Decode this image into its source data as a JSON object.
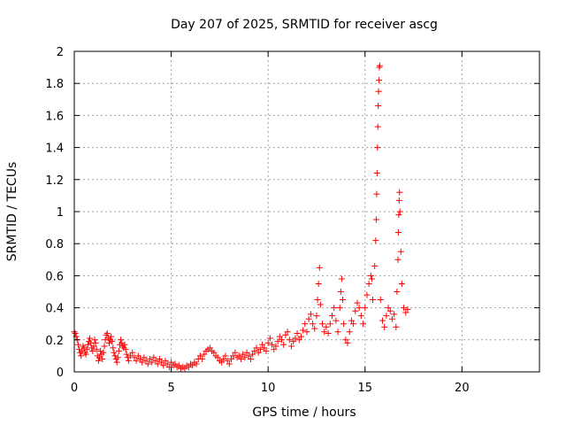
{
  "chart_data": {
    "type": "scatter",
    "title": "Day 207 of 2025, SRMTID for receiver ascg",
    "xlabel": "GPS time / hours",
    "ylabel": "SRMTID / TECUs",
    "xlim": [
      0,
      24
    ],
    "ylim": [
      0,
      2
    ],
    "xticks": [
      0,
      5,
      10,
      15,
      20
    ],
    "yticks": [
      0,
      0.2,
      0.4,
      0.6,
      0.8,
      1,
      1.2,
      1.4,
      1.6,
      1.8,
      2
    ],
    "xtick_labels": [
      "0",
      "5",
      "10",
      "15",
      "20"
    ],
    "ytick_labels": [
      "0",
      "0.2",
      "0.4",
      "0.6",
      "0.8",
      "1",
      "1.2",
      "1.4",
      "1.6",
      "1.8",
      "2"
    ],
    "grid": true,
    "marker": "+",
    "color": "#ff0000",
    "series": [
      {
        "name": "SRMTID",
        "points": [
          [
            0.0,
            0.25
          ],
          [
            0.05,
            0.24
          ],
          [
            0.1,
            0.22
          ],
          [
            0.15,
            0.2
          ],
          [
            0.2,
            0.17
          ],
          [
            0.25,
            0.14
          ],
          [
            0.3,
            0.12
          ],
          [
            0.35,
            0.1
          ],
          [
            0.4,
            0.13
          ],
          [
            0.45,
            0.16
          ],
          [
            0.5,
            0.15
          ],
          [
            0.55,
            0.12
          ],
          [
            0.6,
            0.11
          ],
          [
            0.65,
            0.14
          ],
          [
            0.7,
            0.17
          ],
          [
            0.75,
            0.19
          ],
          [
            0.8,
            0.21
          ],
          [
            0.85,
            0.18
          ],
          [
            0.9,
            0.15
          ],
          [
            0.95,
            0.13
          ],
          [
            1.0,
            0.16
          ],
          [
            1.05,
            0.2
          ],
          [
            1.1,
            0.18
          ],
          [
            1.15,
            0.14
          ],
          [
            1.2,
            0.1
          ],
          [
            1.25,
            0.07
          ],
          [
            1.3,
            0.09
          ],
          [
            1.35,
            0.13
          ],
          [
            1.4,
            0.11
          ],
          [
            1.45,
            0.08
          ],
          [
            1.5,
            0.12
          ],
          [
            1.55,
            0.16
          ],
          [
            1.6,
            0.2
          ],
          [
            1.65,
            0.23
          ],
          [
            1.7,
            0.24
          ],
          [
            1.75,
            0.21
          ],
          [
            1.8,
            0.18
          ],
          [
            1.85,
            0.2
          ],
          [
            1.9,
            0.22
          ],
          [
            1.95,
            0.19
          ],
          [
            2.0,
            0.15
          ],
          [
            2.05,
            0.12
          ],
          [
            2.1,
            0.1
          ],
          [
            2.15,
            0.08
          ],
          [
            2.2,
            0.06
          ],
          [
            2.25,
            0.09
          ],
          [
            2.3,
            0.13
          ],
          [
            2.35,
            0.17
          ],
          [
            2.4,
            0.2
          ],
          [
            2.45,
            0.18
          ],
          [
            2.5,
            0.16
          ],
          [
            2.55,
            0.15
          ],
          [
            2.6,
            0.17
          ],
          [
            2.65,
            0.14
          ],
          [
            2.7,
            0.11
          ],
          [
            2.75,
            0.09
          ],
          [
            2.8,
            0.07
          ],
          [
            2.9,
            0.1
          ],
          [
            3.0,
            0.12
          ],
          [
            3.1,
            0.09
          ],
          [
            3.2,
            0.07
          ],
          [
            3.3,
            0.1
          ],
          [
            3.4,
            0.08
          ],
          [
            3.5,
            0.06
          ],
          [
            3.6,
            0.09
          ],
          [
            3.7,
            0.07
          ],
          [
            3.8,
            0.05
          ],
          [
            3.9,
            0.08
          ],
          [
            4.0,
            0.06
          ],
          [
            4.1,
            0.09
          ],
          [
            4.2,
            0.07
          ],
          [
            4.3,
            0.05
          ],
          [
            4.4,
            0.08
          ],
          [
            4.5,
            0.06
          ],
          [
            4.6,
            0.04
          ],
          [
            4.7,
            0.07
          ],
          [
            4.8,
            0.05
          ],
          [
            4.9,
            0.03
          ],
          [
            5.0,
            0.06
          ],
          [
            5.1,
            0.04
          ],
          [
            5.2,
            0.05
          ],
          [
            5.3,
            0.03
          ],
          [
            5.4,
            0.04
          ],
          [
            5.5,
            0.02
          ],
          [
            5.6,
            0.03
          ],
          [
            5.7,
            0.02
          ],
          [
            5.8,
            0.04
          ],
          [
            5.9,
            0.03
          ],
          [
            6.0,
            0.05
          ],
          [
            6.1,
            0.04
          ],
          [
            6.2,
            0.06
          ],
          [
            6.3,
            0.05
          ],
          [
            6.4,
            0.08
          ],
          [
            6.5,
            0.1
          ],
          [
            6.6,
            0.08
          ],
          [
            6.7,
            0.11
          ],
          [
            6.8,
            0.13
          ],
          [
            6.9,
            0.14
          ],
          [
            7.0,
            0.15
          ],
          [
            7.1,
            0.13
          ],
          [
            7.2,
            0.12
          ],
          [
            7.3,
            0.1
          ],
          [
            7.4,
            0.09
          ],
          [
            7.5,
            0.07
          ],
          [
            7.6,
            0.06
          ],
          [
            7.7,
            0.08
          ],
          [
            7.8,
            0.1
          ],
          [
            7.9,
            0.07
          ],
          [
            8.0,
            0.05
          ],
          [
            8.1,
            0.08
          ],
          [
            8.2,
            0.1
          ],
          [
            8.3,
            0.12
          ],
          [
            8.4,
            0.09
          ],
          [
            8.5,
            0.1
          ],
          [
            8.6,
            0.08
          ],
          [
            8.7,
            0.11
          ],
          [
            8.8,
            0.09
          ],
          [
            8.9,
            0.12
          ],
          [
            9.0,
            0.1
          ],
          [
            9.1,
            0.08
          ],
          [
            9.2,
            0.11
          ],
          [
            9.3,
            0.13
          ],
          [
            9.4,
            0.15
          ],
          [
            9.5,
            0.12
          ],
          [
            9.6,
            0.14
          ],
          [
            9.7,
            0.17
          ],
          [
            9.8,
            0.15
          ],
          [
            9.9,
            0.13
          ],
          [
            10.0,
            0.18
          ],
          [
            10.1,
            0.21
          ],
          [
            10.2,
            0.17
          ],
          [
            10.3,
            0.14
          ],
          [
            10.4,
            0.16
          ],
          [
            10.5,
            0.19
          ],
          [
            10.6,
            0.22
          ],
          [
            10.7,
            0.2
          ],
          [
            10.8,
            0.17
          ],
          [
            10.9,
            0.23
          ],
          [
            11.0,
            0.25
          ],
          [
            11.1,
            0.2
          ],
          [
            11.2,
            0.16
          ],
          [
            11.3,
            0.19
          ],
          [
            11.4,
            0.21
          ],
          [
            11.5,
            0.24
          ],
          [
            11.6,
            0.2
          ],
          [
            11.7,
            0.22
          ],
          [
            11.8,
            0.26
          ],
          [
            11.9,
            0.3
          ],
          [
            12.0,
            0.25
          ],
          [
            12.1,
            0.33
          ],
          [
            12.2,
            0.36
          ],
          [
            12.3,
            0.3
          ],
          [
            12.4,
            0.27
          ],
          [
            12.5,
            0.35
          ],
          [
            12.55,
            0.45
          ],
          [
            12.6,
            0.55
          ],
          [
            12.65,
            0.65
          ],
          [
            12.7,
            0.42
          ],
          [
            12.8,
            0.3
          ],
          [
            12.9,
            0.25
          ],
          [
            13.0,
            0.28
          ],
          [
            13.1,
            0.24
          ],
          [
            13.2,
            0.3
          ],
          [
            13.3,
            0.35
          ],
          [
            13.4,
            0.4
          ],
          [
            13.5,
            0.32
          ],
          [
            13.6,
            0.25
          ],
          [
            13.7,
            0.4
          ],
          [
            13.75,
            0.5
          ],
          [
            13.8,
            0.58
          ],
          [
            13.85,
            0.45
          ],
          [
            13.9,
            0.3
          ],
          [
            14.0,
            0.2
          ],
          [
            14.1,
            0.18
          ],
          [
            14.2,
            0.25
          ],
          [
            14.3,
            0.32
          ],
          [
            14.4,
            0.3
          ],
          [
            14.5,
            0.38
          ],
          [
            14.6,
            0.43
          ],
          [
            14.7,
            0.4
          ],
          [
            14.8,
            0.35
          ],
          [
            14.9,
            0.3
          ],
          [
            15.0,
            0.4
          ],
          [
            15.1,
            0.48
          ],
          [
            15.2,
            0.55
          ],
          [
            15.3,
            0.6
          ],
          [
            15.35,
            0.58
          ],
          [
            15.4,
            0.45
          ],
          [
            15.5,
            0.66
          ],
          [
            15.55,
            0.82
          ],
          [
            15.58,
            0.95
          ],
          [
            15.6,
            1.11
          ],
          [
            15.62,
            1.24
          ],
          [
            15.64,
            1.4
          ],
          [
            15.66,
            1.53
          ],
          [
            15.68,
            1.66
          ],
          [
            15.7,
            1.75
          ],
          [
            15.72,
            1.82
          ],
          [
            15.74,
            1.9
          ],
          [
            15.76,
            1.91
          ],
          [
            15.8,
            0.45
          ],
          [
            15.9,
            0.32
          ],
          [
            16.0,
            0.28
          ],
          [
            16.1,
            0.35
          ],
          [
            16.2,
            0.4
          ],
          [
            16.3,
            0.38
          ],
          [
            16.4,
            0.33
          ],
          [
            16.5,
            0.36
          ],
          [
            16.6,
            0.28
          ],
          [
            16.65,
            0.5
          ],
          [
            16.7,
            0.7
          ],
          [
            16.72,
            0.87
          ],
          [
            16.74,
            0.98
          ],
          [
            16.76,
            1.07
          ],
          [
            16.78,
            1.12
          ],
          [
            16.8,
            1.0
          ],
          [
            16.85,
            0.75
          ],
          [
            16.9,
            0.55
          ],
          [
            17.0,
            0.4
          ],
          [
            17.1,
            0.37
          ],
          [
            17.2,
            0.39
          ]
        ]
      }
    ]
  }
}
